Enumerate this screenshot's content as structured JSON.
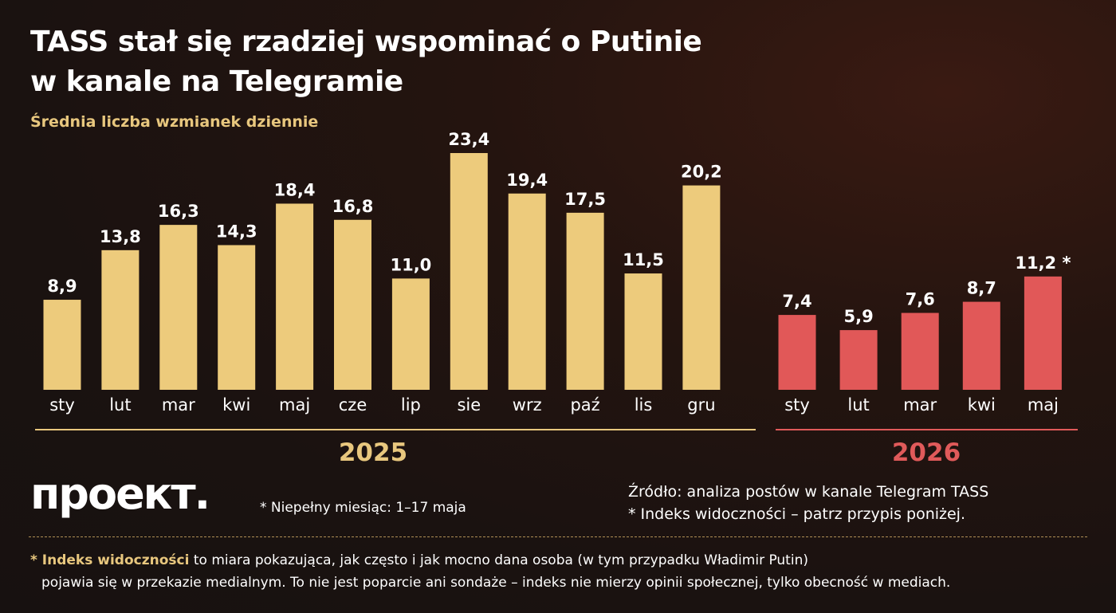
{
  "header": {
    "title_line1": "TASS stał się rzadziej wspominać o Putinie",
    "title_line2": "w kanale na Telegramie",
    "subtitle": "Średnia liczba wzmianek dziennie"
  },
  "colors": {
    "bar_2025": "#edcb7c",
    "bar_2026": "#e15858",
    "accent_2025": "#e8c77e",
    "accent_2026": "#e05a5a"
  },
  "chart_data": {
    "type": "bar",
    "title": "TASS stał się rzadziej wspominać o Putinie w kanale na Telegramie",
    "ylabel": "Średnia liczba wzmianek dziennie",
    "grid": false,
    "ylim": [
      0,
      23.4
    ],
    "groups": [
      {
        "name": "2025",
        "categories": [
          "sty",
          "lut",
          "mar",
          "kwi",
          "maj",
          "cze",
          "lip",
          "sie",
          "wrz",
          "paź",
          "lis",
          "gru"
        ],
        "values": [
          8.9,
          13.8,
          16.3,
          14.3,
          18.4,
          16.8,
          11.0,
          23.4,
          19.4,
          17.5,
          11.5,
          20.2
        ],
        "labels": [
          "8,9",
          "13,8",
          "16,3",
          "14,3",
          "18,4",
          "16,8",
          "11,0",
          "23,4",
          "19,4",
          "17,5",
          "11,5",
          "20,2"
        ]
      },
      {
        "name": "2026",
        "categories": [
          "sty",
          "lut",
          "mar",
          "kwi",
          "maj"
        ],
        "values": [
          7.4,
          5.9,
          7.6,
          8.7,
          11.2
        ],
        "labels": [
          "7,4",
          "5,9",
          "7,6",
          "8,7",
          "11,2 *"
        ]
      }
    ]
  },
  "footer": {
    "logo": "проект.",
    "partial_note": "* Niepełny miesiąc: 1–17 maja",
    "source_line1": "Źródło: analiza postów w kanale Telegram TASS",
    "source_line2": "* Indeks widoczności – patrz przypis poniżej.",
    "footnote_key": "* Indeks widoczności",
    "footnote_rest": "to miara pokazująca, jak często i jak mocno dana osoba (w tym przypadku Władimir Putin)",
    "footnote_line2": "pojawia się w przekazie medialnym. To nie jest poparcie ani sondaże – indeks nie mierzy opinii społecznej, tylko obecność w mediach."
  }
}
